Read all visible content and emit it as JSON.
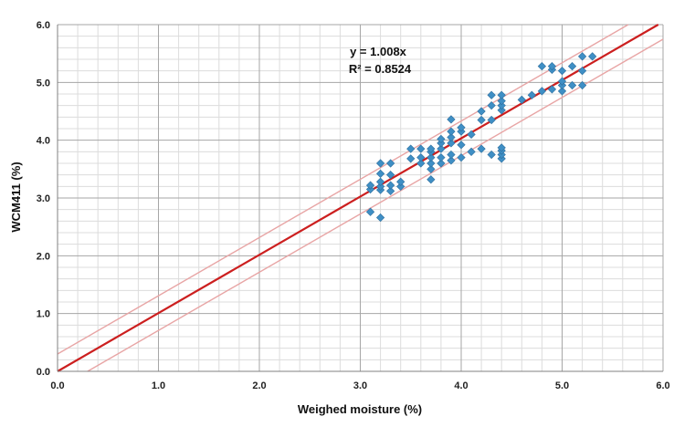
{
  "chart_data": {
    "type": "scatter",
    "xlabel": "Weighed moisture (%)",
    "ylabel": "WCM411 (%)",
    "xlim": [
      0,
      6
    ],
    "ylim": [
      0,
      6
    ],
    "x_ticks": [
      "0.0",
      "1.0",
      "2.0",
      "3.0",
      "4.0",
      "5.0",
      "6.0"
    ],
    "y_ticks": [
      "0.0",
      "1.0",
      "2.0",
      "3.0",
      "4.0",
      "5.0",
      "6.0"
    ],
    "grid": true,
    "annotation": {
      "equation": "y = 1.008x",
      "r_squared": "R² = 0.8524"
    },
    "trendline": {
      "slope": 1.008,
      "color": "#cc1f1f"
    },
    "band_lines": [
      {
        "offset": 0.3,
        "color": "#e8a5a5"
      },
      {
        "offset": -0.3,
        "color": "#e8a5a5"
      }
    ],
    "marker_color": "#3f8fc5",
    "series": [
      {
        "points": [
          [
            3.1,
            2.76
          ],
          [
            3.1,
            3.15
          ],
          [
            3.1,
            3.22
          ],
          [
            3.2,
            2.66
          ],
          [
            3.2,
            3.14
          ],
          [
            3.2,
            3.2
          ],
          [
            3.2,
            3.28
          ],
          [
            3.2,
            3.42
          ],
          [
            3.2,
            3.6
          ],
          [
            3.3,
            3.12
          ],
          [
            3.3,
            3.22
          ],
          [
            3.3,
            3.4
          ],
          [
            3.3,
            3.6
          ],
          [
            3.4,
            3.2
          ],
          [
            3.4,
            3.28
          ],
          [
            3.5,
            3.68
          ],
          [
            3.5,
            3.85
          ],
          [
            3.6,
            3.6
          ],
          [
            3.6,
            3.7
          ],
          [
            3.6,
            3.85
          ],
          [
            3.7,
            3.32
          ],
          [
            3.7,
            3.5
          ],
          [
            3.7,
            3.6
          ],
          [
            3.7,
            3.7
          ],
          [
            3.7,
            3.8
          ],
          [
            3.7,
            3.85
          ],
          [
            3.8,
            3.6
          ],
          [
            3.8,
            3.7
          ],
          [
            3.8,
            3.85
          ],
          [
            3.8,
            3.95
          ],
          [
            3.8,
            4.02
          ],
          [
            3.9,
            3.65
          ],
          [
            3.9,
            3.75
          ],
          [
            3.9,
            3.95
          ],
          [
            3.9,
            4.05
          ],
          [
            3.9,
            4.15
          ],
          [
            3.9,
            4.36
          ],
          [
            4.0,
            3.7
          ],
          [
            4.0,
            3.92
          ],
          [
            4.0,
            4.15
          ],
          [
            4.0,
            4.22
          ],
          [
            4.1,
            3.8
          ],
          [
            4.1,
            4.1
          ],
          [
            4.2,
            3.85
          ],
          [
            4.2,
            4.35
          ],
          [
            4.2,
            4.5
          ],
          [
            4.3,
            3.75
          ],
          [
            4.3,
            4.35
          ],
          [
            4.3,
            4.6
          ],
          [
            4.3,
            4.78
          ],
          [
            4.4,
            3.68
          ],
          [
            4.4,
            3.75
          ],
          [
            4.4,
            3.82
          ],
          [
            4.4,
            3.87
          ],
          [
            4.4,
            4.52
          ],
          [
            4.4,
            4.6
          ],
          [
            4.4,
            4.68
          ],
          [
            4.4,
            4.78
          ],
          [
            4.6,
            4.7
          ],
          [
            4.7,
            4.78
          ],
          [
            4.8,
            4.85
          ],
          [
            4.8,
            5.28
          ],
          [
            4.9,
            4.88
          ],
          [
            4.9,
            5.22
          ],
          [
            4.9,
            5.28
          ],
          [
            5.0,
            4.85
          ],
          [
            5.0,
            4.95
          ],
          [
            5.0,
            5.02
          ],
          [
            5.0,
            5.2
          ],
          [
            5.1,
            4.95
          ],
          [
            5.1,
            5.28
          ],
          [
            5.2,
            4.95
          ],
          [
            5.2,
            5.2
          ],
          [
            5.2,
            5.45
          ],
          [
            5.3,
            5.45
          ]
        ]
      }
    ]
  }
}
